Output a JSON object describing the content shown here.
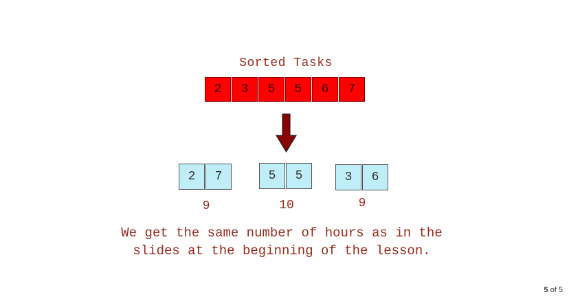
{
  "diagram": {
    "title": "Sorted Tasks",
    "sorted_tasks": [
      "2",
      "3",
      "5",
      "5",
      "6",
      "7"
    ],
    "groups": [
      {
        "tasks": [
          "2",
          "7"
        ],
        "sum": "9"
      },
      {
        "tasks": [
          "5",
          "5"
        ],
        "sum": "10"
      },
      {
        "tasks": [
          "3",
          "6"
        ],
        "sum": "9"
      }
    ],
    "caption": "We get the same number of hours as in the\nslides at the beginning of the lesson."
  },
  "pager": {
    "current": "5",
    "separator": "of",
    "total": "5"
  },
  "colors": {
    "sorted_fill": "#ff0000",
    "group_fill": "#bfeef8",
    "arrow_fill": "#8b0000",
    "text_red": "#9b2a1d"
  }
}
